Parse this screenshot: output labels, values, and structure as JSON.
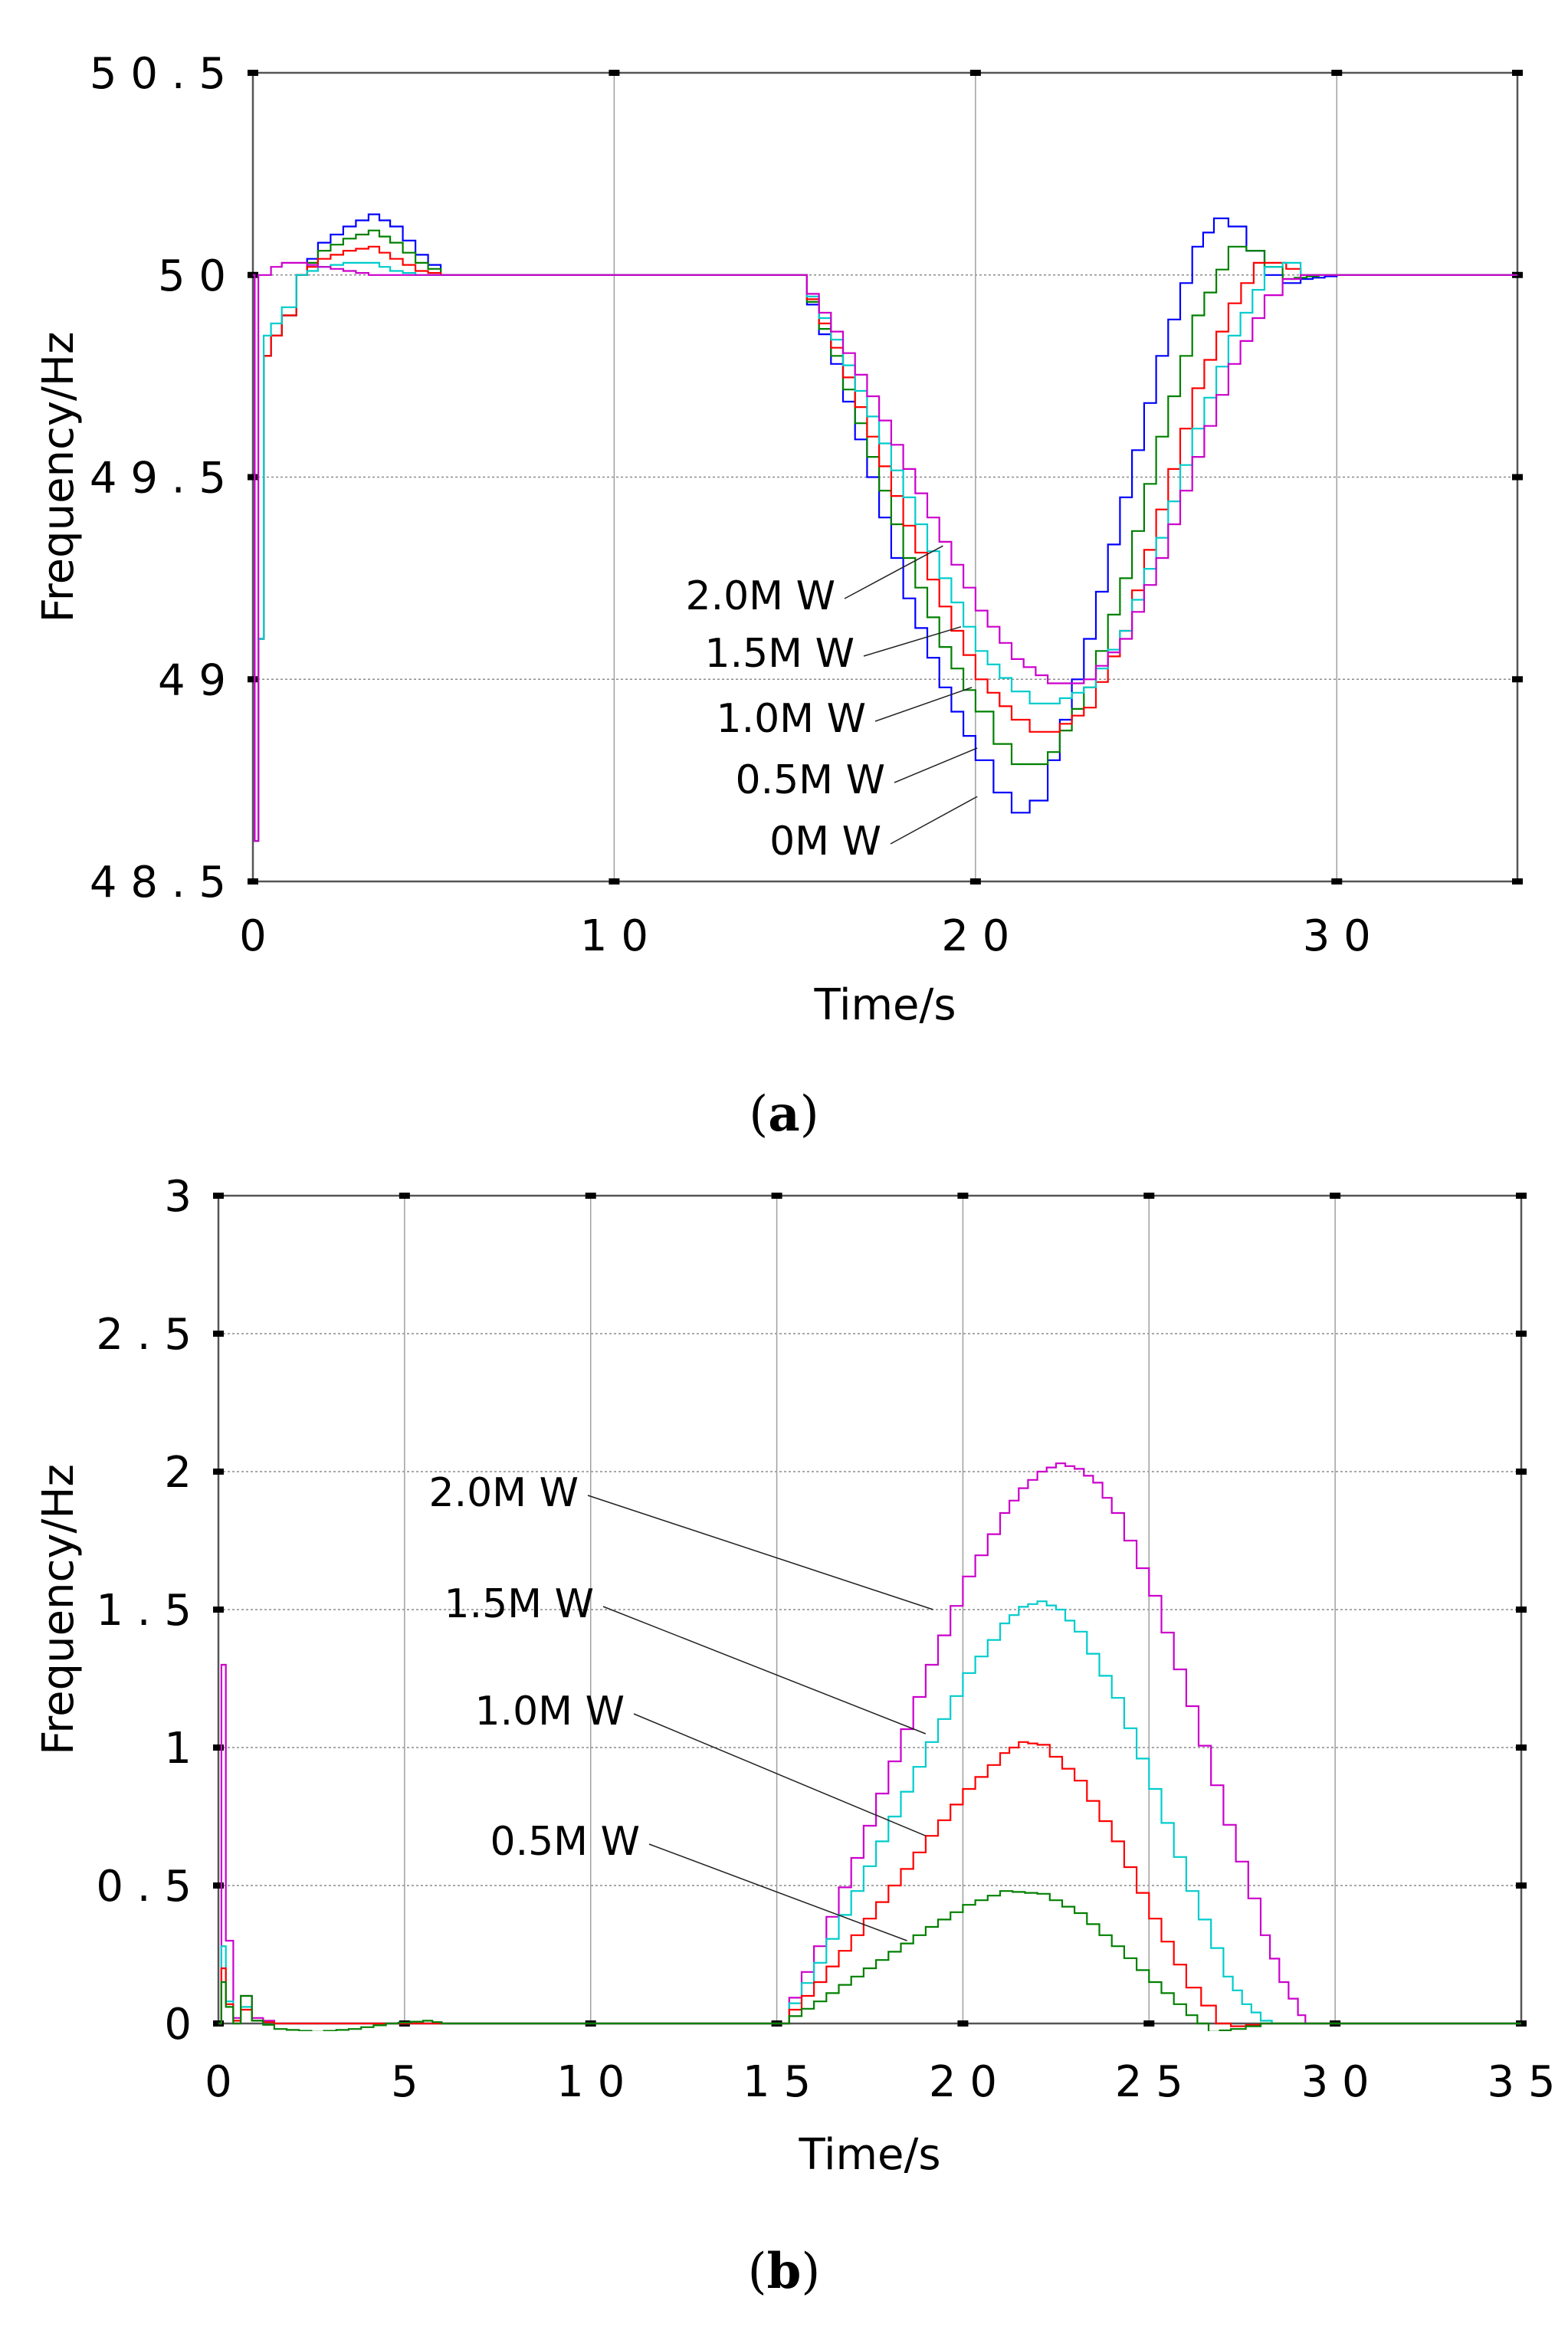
{
  "chart_data": [
    {
      "panel_label": "(a)",
      "type": "line",
      "xlabel": "Time/s",
      "ylabel": "Frequency/Hz",
      "xlim": [
        0,
        35
      ],
      "ylim": [
        48.5,
        50.5
      ],
      "xticks": [
        0,
        10,
        20,
        30
      ],
      "xtick_labels": [
        "0",
        "1 0",
        "2 0",
        "3 0"
      ],
      "yticks": [
        48.5,
        49,
        49.5,
        50,
        50.5
      ],
      "ytick_labels": [
        "4 8 . 5",
        "4 9",
        "4 9 . 5",
        "5 0",
        "5 0 . 5"
      ],
      "grid": true,
      "series": [
        {
          "name": "0M W",
          "color": "#0000ff",
          "x": [
            0,
            0.05,
            0.15,
            0.3,
            0.5,
            0.8,
            1.2,
            1.8,
            2.5,
            3.2,
            3.8,
            4.5,
            5.2,
            6,
            8,
            10,
            12,
            14,
            15,
            16,
            17,
            18,
            19,
            20,
            20.5,
            21,
            21.5,
            22,
            23,
            24,
            25,
            26,
            26.6,
            27,
            27.5,
            28,
            28.5,
            29,
            30,
            32,
            35
          ],
          "y": [
            50,
            48.6,
            49.1,
            49.8,
            49.85,
            49.9,
            50.0,
            50.08,
            50.12,
            50.15,
            50.12,
            50.05,
            50.0,
            50.0,
            50.0,
            50.0,
            50.0,
            50.0,
            50.0,
            49.78,
            49.5,
            49.2,
            48.98,
            48.8,
            48.72,
            48.67,
            48.7,
            48.8,
            49.1,
            49.45,
            49.8,
            50.07,
            50.14,
            50.12,
            50.06,
            50.0,
            49.98,
            49.99,
            50.0,
            50.0,
            50.0
          ]
        },
        {
          "name": "0.5M W",
          "color": "#008000",
          "x": [
            0,
            0.05,
            0.15,
            0.3,
            0.5,
            0.8,
            1.2,
            1.8,
            2.5,
            3.2,
            3.8,
            4.5,
            5.2,
            6,
            8,
            10,
            12,
            14,
            15,
            16,
            17,
            18,
            19,
            20,
            20.5,
            21,
            21.5,
            22,
            23,
            24,
            25,
            26,
            27,
            27.5,
            28,
            28.5,
            29.5,
            30,
            32,
            35
          ],
          "y": [
            50,
            48.6,
            49.1,
            49.8,
            49.85,
            49.9,
            50.0,
            50.06,
            50.09,
            50.11,
            50.08,
            50.03,
            50.0,
            50.0,
            50.0,
            50.0,
            50.0,
            50.0,
            50.0,
            49.8,
            49.55,
            49.3,
            49.08,
            48.92,
            48.84,
            48.79,
            48.79,
            48.82,
            48.98,
            49.25,
            49.6,
            49.9,
            50.07,
            50.06,
            50.02,
            49.99,
            50.0,
            50.0,
            50.0,
            50.0
          ]
        },
        {
          "name": "1.0M W",
          "color": "#ff0000",
          "x": [
            0,
            0.05,
            0.15,
            0.3,
            0.5,
            0.8,
            1.2,
            1.8,
            2.5,
            3.2,
            3.8,
            4.5,
            5.2,
            6,
            8,
            10,
            12,
            14,
            15,
            16,
            17,
            18,
            19,
            20,
            21,
            21.5,
            22,
            23,
            24,
            25,
            26,
            27,
            27.7,
            28.2,
            29,
            30,
            32,
            35
          ],
          "y": [
            50,
            48.6,
            49.1,
            49.8,
            49.85,
            49.9,
            50.0,
            50.04,
            50.06,
            50.07,
            50.04,
            50.01,
            50.0,
            50.0,
            50.0,
            50.0,
            50.0,
            50.0,
            50.0,
            49.82,
            49.6,
            49.38,
            49.18,
            49.0,
            48.9,
            48.87,
            48.87,
            48.93,
            49.12,
            49.42,
            49.72,
            49.93,
            50.03,
            50.03,
            50.0,
            50.0,
            50.0,
            50.0
          ]
        },
        {
          "name": "1.5M W",
          "color": "#00cccc",
          "x": [
            0,
            0.05,
            0.15,
            0.3,
            0.5,
            0.8,
            1.2,
            1.8,
            2.5,
            3.2,
            3.8,
            4.5,
            5.2,
            6,
            8,
            10,
            12,
            14,
            15,
            16,
            17,
            18,
            19,
            20,
            21,
            21.5,
            22,
            23,
            24,
            25,
            26,
            27,
            28,
            28.5,
            29,
            30,
            32,
            35
          ],
          "y": [
            50,
            48.6,
            49.1,
            49.85,
            49.88,
            49.92,
            50.0,
            50.02,
            50.03,
            50.03,
            50.01,
            50.0,
            50.0,
            50.0,
            50.0,
            50.0,
            50.0,
            50.0,
            50.0,
            49.84,
            49.65,
            49.45,
            49.25,
            49.07,
            48.97,
            48.94,
            48.94,
            48.98,
            49.12,
            49.35,
            49.62,
            49.85,
            50.02,
            50.03,
            50.0,
            50.0,
            50.0,
            50.0
          ]
        },
        {
          "name": "2.0M W",
          "color": "#cc00cc",
          "x": [
            0,
            0.05,
            0.15,
            0.3,
            0.5,
            0.8,
            1.2,
            1.8,
            2.5,
            3.2,
            3.8,
            4.5,
            5.2,
            6,
            8,
            10,
            12,
            14,
            15,
            16,
            17,
            18,
            19,
            20,
            21,
            22,
            22.5,
            23,
            24,
            25,
            26,
            27,
            28,
            28.5,
            29,
            30,
            32,
            35
          ],
          "y": [
            50,
            48.6,
            50.0,
            50.0,
            50.02,
            50.03,
            50.03,
            50.02,
            50.01,
            50.0,
            50.0,
            50.0,
            50.0,
            50.0,
            50.0,
            50.0,
            50.0,
            50.0,
            50.0,
            49.86,
            49.7,
            49.52,
            49.34,
            49.17,
            49.05,
            48.99,
            48.99,
            49.0,
            49.1,
            49.3,
            49.55,
            49.78,
            49.95,
            49.99,
            50.0,
            50.0,
            50.0,
            50.0
          ]
        }
      ],
      "annotations": [
        {
          "text": "2.0M W",
          "target": [
            19.1,
            49.33
          ]
        },
        {
          "text": "1.5M W",
          "target": [
            19.6,
            49.13
          ]
        },
        {
          "text": "1.0M W",
          "target": [
            19.9,
            48.98
          ]
        },
        {
          "text": "0.5M W",
          "target": [
            20.05,
            48.83
          ]
        },
        {
          "text": "0M W",
          "target": [
            20.05,
            48.71
          ]
        }
      ]
    },
    {
      "panel_label": "(b)",
      "type": "line",
      "xlabel": "Time/s",
      "ylabel": "Frequency/Hz",
      "xlim": [
        0,
        35
      ],
      "ylim": [
        0,
        3
      ],
      "xticks": [
        0,
        5,
        10,
        15,
        20,
        25,
        30,
        35
      ],
      "xtick_labels": [
        "0",
        "5",
        "1 0",
        "1 5",
        "2 0",
        "2 5",
        "3 0",
        "3 5"
      ],
      "yticks": [
        0,
        0.5,
        1,
        1.5,
        2,
        2.5,
        3
      ],
      "ytick_labels": [
        "0",
        "0 . 5",
        "1",
        "1 . 5",
        "2",
        "2 . 5",
        "3"
      ],
      "grid": true,
      "series": [
        {
          "name": "2.0M W",
          "color": "#cc00cc",
          "x": [
            0,
            0.08,
            0.2,
            0.4,
            0.6,
            0.9,
            1.5,
            3,
            5,
            7,
            10,
            15,
            16,
            17,
            18,
            19,
            20,
            21,
            21.5,
            22,
            22.5,
            23,
            23.5,
            24,
            25,
            26,
            27,
            28,
            28.5,
            29,
            29.2,
            32,
            35
          ],
          "y": [
            0,
            1.3,
            0.3,
            0.02,
            0.1,
            0.02,
            0.0,
            0.0,
            0.0,
            0.0,
            0.0,
            0.0,
            0.28,
            0.6,
            0.95,
            1.3,
            1.62,
            1.85,
            1.94,
            2.0,
            2.03,
            2.01,
            1.96,
            1.85,
            1.55,
            1.15,
            0.72,
            0.32,
            0.15,
            0.03,
            0.0,
            0.0,
            0.0
          ]
        },
        {
          "name": "1.5M W",
          "color": "#00cccc",
          "x": [
            0,
            0.08,
            0.2,
            0.4,
            0.6,
            0.9,
            1.5,
            3,
            5,
            7,
            10,
            15,
            16,
            17,
            18,
            19,
            20,
            21,
            21.5,
            22,
            22.5,
            23,
            24,
            25,
            26,
            27,
            27.5,
            28,
            28.3,
            29,
            32,
            35
          ],
          "y": [
            0,
            0.28,
            0.08,
            0.01,
            0.06,
            0.01,
            0.0,
            0.0,
            0.0,
            0.0,
            0.0,
            0.0,
            0.22,
            0.48,
            0.75,
            1.02,
            1.27,
            1.45,
            1.51,
            1.53,
            1.5,
            1.42,
            1.18,
            0.85,
            0.48,
            0.17,
            0.07,
            0.01,
            0.0,
            0.0,
            0.0,
            0.0
          ]
        },
        {
          "name": "1.0M W",
          "color": "#ff0000",
          "x": [
            0,
            0.08,
            0.2,
            0.4,
            0.6,
            0.9,
            1.5,
            3,
            5,
            7,
            10,
            15,
            16,
            17,
            18,
            19,
            20,
            21,
            21.5,
            22,
            23,
            24,
            25,
            26,
            26.8,
            27.2,
            28,
            32,
            35
          ],
          "y": [
            0,
            0.2,
            0.07,
            0.01,
            0.05,
            0.01,
            0.0,
            0.0,
            0.0,
            0.0,
            0.0,
            0.0,
            0.15,
            0.32,
            0.5,
            0.68,
            0.85,
            0.98,
            1.02,
            1.01,
            0.88,
            0.66,
            0.38,
            0.13,
            0.0,
            -0.01,
            0.0,
            0.0,
            0.0
          ]
        },
        {
          "name": "0.5M W",
          "color": "#008000",
          "x": [
            0,
            0.08,
            0.2,
            0.4,
            0.6,
            0.9,
            1.5,
            2.5,
            3.5,
            4.5,
            5.5,
            6,
            7,
            10,
            15,
            16,
            17,
            18,
            19,
            20,
            21,
            22,
            23,
            24,
            25,
            26,
            26.6,
            27.2,
            28,
            29,
            32,
            35
          ],
          "y": [
            0,
            0.15,
            0.06,
            0.0,
            0.1,
            0.01,
            -0.02,
            -0.03,
            -0.02,
            0.0,
            0.01,
            0.0,
            0.0,
            0.0,
            0.0,
            0.08,
            0.17,
            0.26,
            0.35,
            0.43,
            0.48,
            0.47,
            0.4,
            0.28,
            0.15,
            0.03,
            -0.03,
            -0.02,
            0.0,
            0.0,
            0.0,
            0.0
          ]
        }
      ],
      "annotations": [
        {
          "text": "2.0M W",
          "target": [
            19.2,
            1.5
          ]
        },
        {
          "text": "1.5M W",
          "target": [
            19.0,
            1.05
          ]
        },
        {
          "text": "1.0M W",
          "target": [
            19.0,
            0.68
          ]
        },
        {
          "text": "0.5M W",
          "target": [
            18.5,
            0.3
          ]
        }
      ]
    }
  ]
}
